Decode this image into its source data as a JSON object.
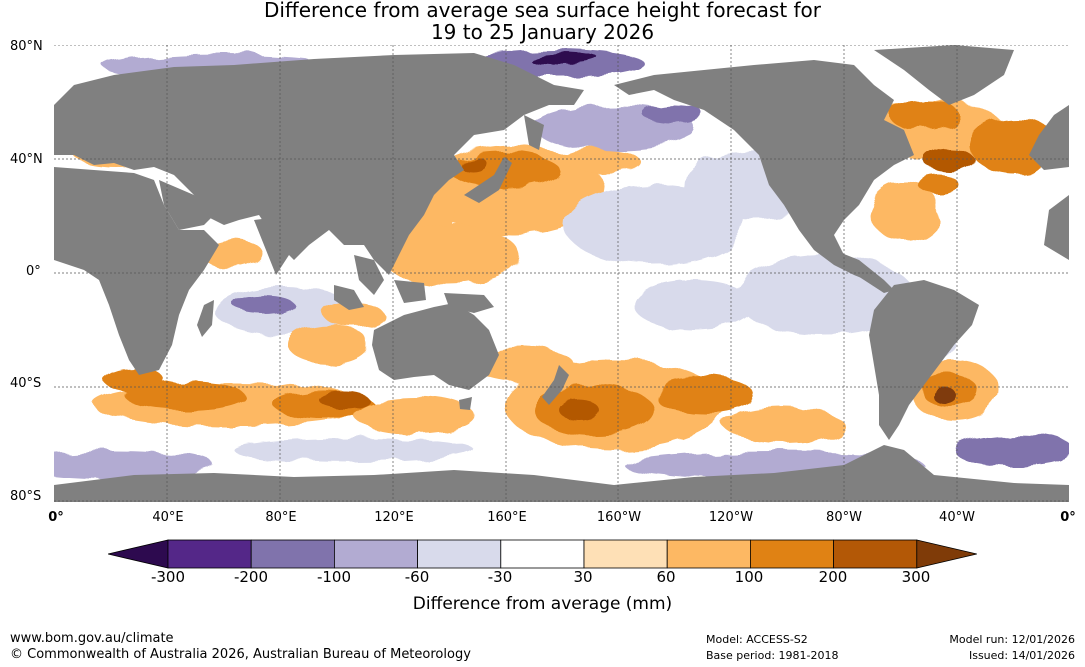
{
  "title": {
    "line1": "Difference from average sea surface height forecast for",
    "line2": "19 to 25 January 2026"
  },
  "latitude_labels": [
    "80°N",
    "40°N",
    "0°",
    "40°S",
    "80°S"
  ],
  "longitude_labels": [
    "0°",
    "40°E",
    "80°E",
    "120°E",
    "160°E",
    "160°W",
    "120°W",
    "80°W",
    "40°W",
    "0°"
  ],
  "colorbar": {
    "ticks": [
      "-300",
      "-200",
      "-100",
      "-60",
      "-30",
      "30",
      "60",
      "100",
      "200",
      "300"
    ],
    "colors": [
      "#2d0a4f",
      "#542788",
      "#8073ac",
      "#b2abd2",
      "#d8daeb",
      "#ffffff",
      "#fee0b6",
      "#fdb863",
      "#e08214",
      "#b35806",
      "#7f3b08"
    ],
    "label": "Difference from average (mm)"
  },
  "colors": {
    "land": "#808080",
    "ocean": "#ffffff",
    "grid": "#555555"
  },
  "footer": {
    "url": "www.bom.gov.au/climate",
    "copyright": "© Commonwealth of Australia 2026, Australian Bureau of Meteorology",
    "model": "Model: ACCESS-S2",
    "base_period": "Base period: 1981-2018",
    "model_run": "Model run: 12/01/2026",
    "issued": "Issued: 14/01/2026"
  }
}
